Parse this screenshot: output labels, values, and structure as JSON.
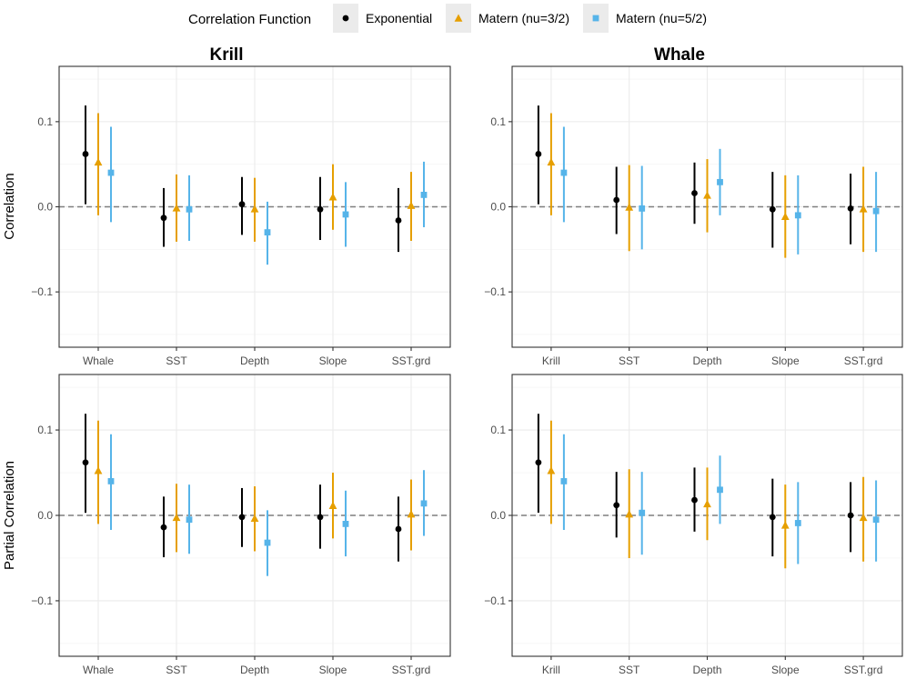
{
  "legend": {
    "title": "Correlation Function",
    "entries": [
      {
        "name": "Exponential",
        "color": "#000000",
        "shape": "circle"
      },
      {
        "name": "Matern (nu=3/2)",
        "color": "#E69F00",
        "shape": "triangle"
      },
      {
        "name": "Matern (nu=5/2)",
        "color": "#56B4E9",
        "shape": "square"
      }
    ]
  },
  "columns": [
    "Krill",
    "Whale"
  ],
  "rows": [
    "Correlation",
    "Partial Correlation"
  ],
  "chart_data": [
    {
      "type": "errorbar",
      "row": "Correlation",
      "column": "Krill",
      "categories": [
        "Whale",
        "SST",
        "Depth",
        "Slope",
        "SST.grd"
      ],
      "ylim": [
        -0.165,
        0.165
      ],
      "yticks": [
        -0.1,
        0.0,
        0.1
      ],
      "ytick_labels": [
        "−0.1",
        "0.0",
        "0.1"
      ],
      "reference_line": 0,
      "series": [
        {
          "name": "Exponential",
          "estimate": [
            0.062,
            -0.013,
            0.003,
            -0.003,
            -0.016
          ],
          "lower": [
            0.003,
            -0.047,
            -0.033,
            -0.039,
            -0.053
          ],
          "upper": [
            0.119,
            0.022,
            0.035,
            0.035,
            0.022
          ]
        },
        {
          "name": "Matern (nu=3/2)",
          "estimate": [
            0.052,
            -0.002,
            -0.003,
            0.011,
            0.001
          ],
          "lower": [
            -0.01,
            -0.041,
            -0.041,
            -0.027,
            -0.04
          ],
          "upper": [
            0.11,
            0.038,
            0.034,
            0.05,
            0.041
          ]
        },
        {
          "name": "Matern (nu=5/2)",
          "estimate": [
            0.04,
            -0.003,
            -0.03,
            -0.009,
            0.014
          ],
          "lower": [
            -0.018,
            -0.04,
            -0.068,
            -0.047,
            -0.024
          ],
          "upper": [
            0.094,
            0.037,
            0.006,
            0.029,
            0.053
          ]
        }
      ]
    },
    {
      "type": "errorbar",
      "row": "Correlation",
      "column": "Whale",
      "categories": [
        "Krill",
        "SST",
        "Depth",
        "Slope",
        "SST.grd"
      ],
      "ylim": [
        -0.165,
        0.165
      ],
      "yticks": [
        -0.1,
        0.0,
        0.1
      ],
      "ytick_labels": [
        "−0.1",
        "0.0",
        "0.1"
      ],
      "reference_line": 0,
      "series": [
        {
          "name": "Exponential",
          "estimate": [
            0.062,
            0.008,
            0.016,
            -0.003,
            -0.002
          ],
          "lower": [
            0.003,
            -0.032,
            -0.02,
            -0.048,
            -0.044
          ],
          "upper": [
            0.119,
            0.047,
            0.052,
            0.041,
            0.039
          ]
        },
        {
          "name": "Matern (nu=3/2)",
          "estimate": [
            0.052,
            -0.001,
            0.013,
            -0.012,
            -0.003
          ],
          "lower": [
            -0.01,
            -0.052,
            -0.03,
            -0.06,
            -0.053
          ],
          "upper": [
            0.11,
            0.049,
            0.056,
            0.037,
            0.047
          ]
        },
        {
          "name": "Matern (nu=5/2)",
          "estimate": [
            0.04,
            -0.002,
            0.029,
            -0.01,
            -0.005
          ],
          "lower": [
            -0.018,
            -0.05,
            -0.01,
            -0.056,
            -0.053
          ],
          "upper": [
            0.094,
            0.048,
            0.068,
            0.037,
            0.041
          ]
        }
      ]
    },
    {
      "type": "errorbar",
      "row": "Partial Correlation",
      "column": "Krill",
      "categories": [
        "Whale",
        "SST",
        "Depth",
        "Slope",
        "SST.grd"
      ],
      "ylim": [
        -0.165,
        0.165
      ],
      "yticks": [
        -0.1,
        0.0,
        0.1
      ],
      "ytick_labels": [
        "−0.1",
        "0.0",
        "0.1"
      ],
      "reference_line": 0,
      "series": [
        {
          "name": "Exponential",
          "estimate": [
            0.062,
            -0.014,
            -0.002,
            -0.002,
            -0.016
          ],
          "lower": [
            0.003,
            -0.049,
            -0.037,
            -0.039,
            -0.054
          ],
          "upper": [
            0.119,
            0.022,
            0.032,
            0.036,
            0.022
          ]
        },
        {
          "name": "Matern (nu=3/2)",
          "estimate": [
            0.052,
            -0.003,
            -0.004,
            0.011,
            0.001
          ],
          "lower": [
            -0.01,
            -0.043,
            -0.042,
            -0.027,
            -0.041
          ],
          "upper": [
            0.111,
            0.037,
            0.034,
            0.05,
            0.042
          ]
        },
        {
          "name": "Matern (nu=5/2)",
          "estimate": [
            0.04,
            -0.005,
            -0.032,
            -0.01,
            0.014
          ],
          "lower": [
            -0.017,
            -0.045,
            -0.071,
            -0.048,
            -0.024
          ],
          "upper": [
            0.095,
            0.036,
            0.006,
            0.029,
            0.053
          ]
        }
      ]
    },
    {
      "type": "errorbar",
      "row": "Partial Correlation",
      "column": "Whale",
      "categories": [
        "Krill",
        "SST",
        "Depth",
        "Slope",
        "SST.grd"
      ],
      "ylim": [
        -0.165,
        0.165
      ],
      "yticks": [
        -0.1,
        0.0,
        0.1
      ],
      "ytick_labels": [
        "−0.1",
        "0.0",
        "0.1"
      ],
      "reference_line": 0,
      "series": [
        {
          "name": "Exponential",
          "estimate": [
            0.062,
            0.012,
            0.018,
            -0.002,
            0.0
          ],
          "lower": [
            0.003,
            -0.026,
            -0.019,
            -0.048,
            -0.043
          ],
          "upper": [
            0.119,
            0.051,
            0.056,
            0.043,
            0.039
          ]
        },
        {
          "name": "Matern (nu=3/2)",
          "estimate": [
            0.052,
            0.001,
            0.013,
            -0.012,
            -0.003
          ],
          "lower": [
            -0.01,
            -0.05,
            -0.029,
            -0.062,
            -0.054
          ],
          "upper": [
            0.111,
            0.054,
            0.056,
            0.036,
            0.045
          ]
        },
        {
          "name": "Matern (nu=5/2)",
          "estimate": [
            0.04,
            0.003,
            0.03,
            -0.009,
            -0.005
          ],
          "lower": [
            -0.017,
            -0.046,
            -0.01,
            -0.057,
            -0.054
          ],
          "upper": [
            0.095,
            0.051,
            0.07,
            0.039,
            0.041
          ]
        }
      ]
    }
  ]
}
